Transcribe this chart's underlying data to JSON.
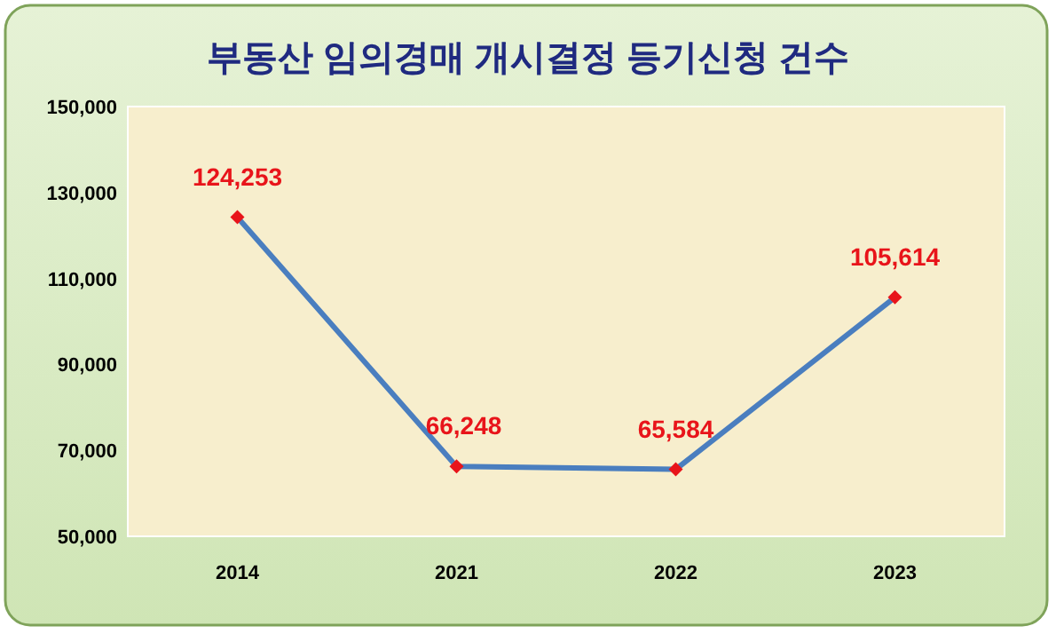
{
  "chart_data": {
    "type": "line",
    "title": "부동산  임의경매 개시결정 등기신청 건수",
    "categories": [
      "2014",
      "2021",
      "2022",
      "2023"
    ],
    "series": [
      {
        "color": "#4a7ebf",
        "values": [
          124253,
          66248,
          65584,
          105614
        ],
        "value_labels": [
          "124,253",
          "66,248",
          "65,584",
          "105,614"
        ]
      }
    ],
    "ylim": [
      50000,
      150000
    ],
    "yticks": [
      {
        "value": 50000,
        "label": "50,000"
      },
      {
        "value": 70000,
        "label": "70,000"
      },
      {
        "value": 90000,
        "label": "90,000"
      },
      {
        "value": 110000,
        "label": "110,000"
      },
      {
        "value": 130000,
        "label": "130,000"
      },
      {
        "value": 150000,
        "label": "150,000"
      }
    ],
    "marker": "diamond",
    "line_style": "solid"
  }
}
